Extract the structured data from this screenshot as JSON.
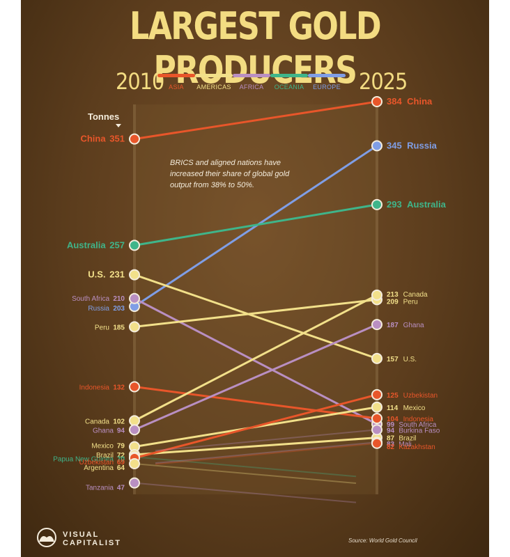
{
  "header": {
    "title": "LARGEST GOLD PRODUCERS",
    "year_left": "2010",
    "year_right": "2025",
    "unit_label": "Tonnes"
  },
  "legend": [
    {
      "key": "asia",
      "label": "ASIA",
      "color": "#e8562a"
    },
    {
      "key": "americas",
      "label": "AMERICAS",
      "color": "#f2e08a"
    },
    {
      "key": "africa",
      "label": "AFRICA",
      "color": "#b98fc2"
    },
    {
      "key": "oceania",
      "label": "OCEANIA",
      "color": "#3fb58a"
    },
    {
      "key": "europe",
      "label": "EUROPE",
      "color": "#7f9ee6"
    }
  ],
  "annotation": "BRICS and aligned nations have increased their share of global gold output from 38% to 50%.",
  "footer": {
    "logo_line1": "VISUAL",
    "logo_line2": "CAPITALIST",
    "source": "Source: World Gold Council"
  },
  "chart_data": {
    "type": "slope",
    "title": "LARGEST GOLD PRODUCERS",
    "unit": "Tonnes",
    "x": [
      "2010",
      "2025"
    ],
    "series": [
      {
        "name": "China",
        "region": "asia",
        "values": [
          351,
          384
        ],
        "label_2010": "China",
        "label_2025": "China"
      },
      {
        "name": "Russia",
        "region": "europe",
        "values": [
          203,
          345
        ],
        "label_2010": "Russia",
        "label_2025": "Russia"
      },
      {
        "name": "Australia",
        "region": "oceania",
        "values": [
          257,
          293
        ],
        "label_2010": "Australia",
        "label_2025": "Australia"
      },
      {
        "name": "U.S.",
        "region": "americas",
        "values": [
          231,
          157
        ],
        "label_2010": "U.S.",
        "label_2025": "U.S."
      },
      {
        "name": "South Africa",
        "region": "africa",
        "values": [
          210,
          99
        ],
        "label_2010": "South Africa",
        "label_2025": "South Africa"
      },
      {
        "name": "Peru",
        "region": "americas",
        "values": [
          185,
          209
        ],
        "label_2010": "Peru",
        "label_2025": "Peru"
      },
      {
        "name": "Indonesia",
        "region": "asia",
        "values": [
          132,
          104
        ],
        "label_2010": "Indonesia",
        "label_2025": "Indonesia"
      },
      {
        "name": "Canada",
        "region": "americas",
        "values": [
          102,
          213
        ],
        "label_2010": "Canada",
        "label_2025": "Canada"
      },
      {
        "name": "Ghana",
        "region": "africa",
        "values": [
          94,
          187
        ],
        "label_2010": "Ghana",
        "label_2025": "Ghana"
      },
      {
        "name": "Mexico",
        "region": "americas",
        "values": [
          79,
          114
        ],
        "label_2010": "Mexico",
        "label_2025": "Mexico"
      },
      {
        "name": "Brazil",
        "region": "americas",
        "values": [
          72,
          87
        ],
        "label_2010": "Brazil",
        "label_2025": "Brazil"
      },
      {
        "name": "Papua New Guinea",
        "region": "oceania",
        "values": [
          70,
          null
        ],
        "label_2010": "Papua New Guinea",
        "label_2025": ""
      },
      {
        "name": "Uzbekistan",
        "region": "asia",
        "values": [
          69,
          125
        ],
        "label_2010": "Uzbekistan",
        "label_2025": "Uzbekistan"
      },
      {
        "name": "Argentina",
        "region": "americas",
        "values": [
          64,
          null
        ],
        "label_2010": "Argentina",
        "label_2025": ""
      },
      {
        "name": "Tanzania",
        "region": "africa",
        "values": [
          47,
          null
        ],
        "label_2010": "Tanzania",
        "label_2025": ""
      },
      {
        "name": "Burkina Faso",
        "region": "africa",
        "values": [
          null,
          94
        ],
        "label_2010": "",
        "label_2025": "Burkina Faso"
      },
      {
        "name": "Mali",
        "region": "africa",
        "values": [
          null,
          83
        ],
        "label_2010": "",
        "label_2025": "Mali"
      },
      {
        "name": "Kazakhstan",
        "region": "asia",
        "values": [
          null,
          82
        ],
        "label_2010": "",
        "label_2025": "Kazakhstan"
      }
    ]
  }
}
